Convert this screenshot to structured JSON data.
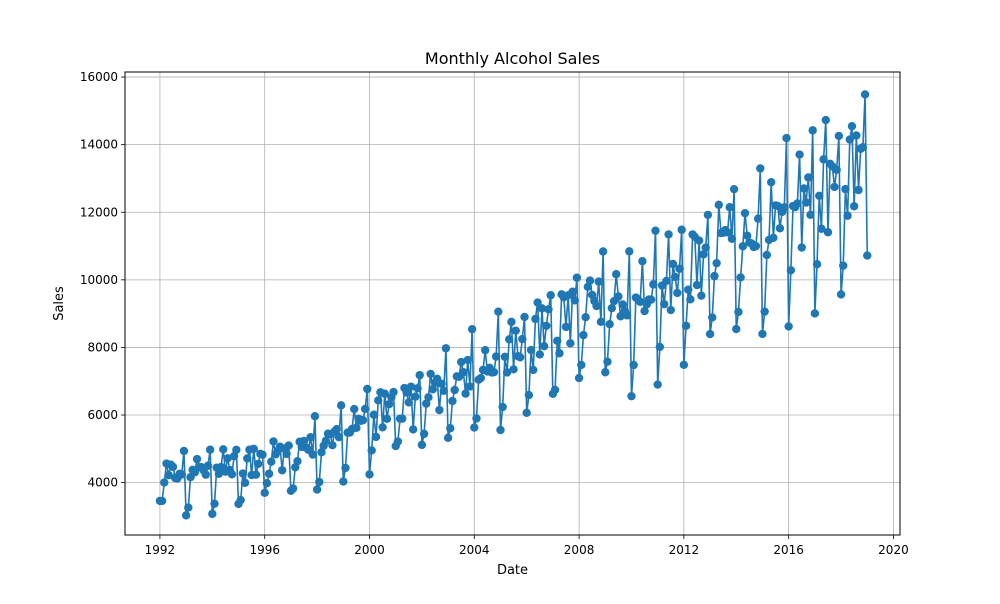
{
  "chart_data": {
    "type": "line",
    "title": "Monthly Alcohol Sales",
    "xlabel": "Date",
    "ylabel": "Sales",
    "xlim": [
      "1990-09-01",
      "2020-04-01"
    ],
    "ylim": [
      2450,
      16150
    ],
    "x_ticks": [
      "1992",
      "1996",
      "2000",
      "2004",
      "2008",
      "2012",
      "2016",
      "2020"
    ],
    "y_ticks": [
      "4000",
      "6000",
      "8000",
      "10000",
      "12000",
      "14000",
      "16000"
    ],
    "grid": true,
    "legend": "none",
    "series": [
      {
        "color": "#1f77b4",
        "marker": "circle",
        "x": [
          "1992-01",
          "1992-02",
          "1992-03",
          "1992-04",
          "1992-05",
          "1992-06",
          "1992-07",
          "1992-08",
          "1992-09",
          "1992-10",
          "1992-11",
          "1992-12",
          "1993-01",
          "1993-02",
          "1993-03",
          "1993-04",
          "1993-05",
          "1993-06",
          "1993-07",
          "1993-08",
          "1993-09",
          "1993-10",
          "1993-11",
          "1993-12",
          "1994-01",
          "1994-02",
          "1994-03",
          "1994-04",
          "1994-05",
          "1994-06",
          "1994-07",
          "1994-08",
          "1994-09",
          "1994-10",
          "1994-11",
          "1994-12",
          "1995-01",
          "1995-02",
          "1995-03",
          "1995-04",
          "1995-05",
          "1995-06",
          "1995-07",
          "1995-08",
          "1995-09",
          "1995-10",
          "1995-11",
          "1995-12",
          "1996-01",
          "1996-02",
          "1996-03",
          "1996-04",
          "1996-05",
          "1996-06",
          "1996-07",
          "1996-08",
          "1996-09",
          "1996-10",
          "1996-11",
          "1996-12",
          "1997-01",
          "1997-02",
          "1997-03",
          "1997-04",
          "1997-05",
          "1997-06",
          "1997-07",
          "1997-08",
          "1997-09",
          "1997-10",
          "1997-11",
          "1997-12",
          "1998-01",
          "1998-02",
          "1998-03",
          "1998-04",
          "1998-05",
          "1998-06",
          "1998-07",
          "1998-08",
          "1998-09",
          "1998-10",
          "1998-11",
          "1998-12",
          "1999-01",
          "1999-02",
          "1999-03",
          "1999-04",
          "1999-05",
          "1999-06",
          "1999-07",
          "1999-08",
          "1999-09",
          "1999-10",
          "1999-11",
          "1999-12",
          "2000-01",
          "2000-02",
          "2000-03",
          "2000-04",
          "2000-05",
          "2000-06",
          "2000-07",
          "2000-08",
          "2000-09",
          "2000-10",
          "2000-11",
          "2000-12",
          "2001-01",
          "2001-02",
          "2001-03",
          "2001-04",
          "2001-05",
          "2001-06",
          "2001-07",
          "2001-08",
          "2001-09",
          "2001-10",
          "2001-11",
          "2001-12",
          "2002-01",
          "2002-02",
          "2002-03",
          "2002-04",
          "2002-05",
          "2002-06",
          "2002-07",
          "2002-08",
          "2002-09",
          "2002-10",
          "2002-11",
          "2002-12",
          "2003-01",
          "2003-02",
          "2003-03",
          "2003-04",
          "2003-05",
          "2003-06",
          "2003-07",
          "2003-08",
          "2003-09",
          "2003-10",
          "2003-11",
          "2003-12",
          "2004-01",
          "2004-02",
          "2004-03",
          "2004-04",
          "2004-05",
          "2004-06",
          "2004-07",
          "2004-08",
          "2004-09",
          "2004-10",
          "2004-11",
          "2004-12",
          "2005-01",
          "2005-02",
          "2005-03",
          "2005-04",
          "2005-05",
          "2005-06",
          "2005-07",
          "2005-08",
          "2005-09",
          "2005-10",
          "2005-11",
          "2005-12",
          "2006-01",
          "2006-02",
          "2006-03",
          "2006-04",
          "2006-05",
          "2006-06",
          "2006-07",
          "2006-08",
          "2006-09",
          "2006-10",
          "2006-11",
          "2006-12",
          "2007-01",
          "2007-02",
          "2007-03",
          "2007-04",
          "2007-05",
          "2007-06",
          "2007-07",
          "2007-08",
          "2007-09",
          "2007-10",
          "2007-11",
          "2007-12",
          "2008-01",
          "2008-02",
          "2008-03",
          "2008-04",
          "2008-05",
          "2008-06",
          "2008-07",
          "2008-08",
          "2008-09",
          "2008-10",
          "2008-11",
          "2008-12",
          "2009-01",
          "2009-02",
          "2009-03",
          "2009-04",
          "2009-05",
          "2009-06",
          "2009-07",
          "2009-08",
          "2009-09",
          "2009-10",
          "2009-11",
          "2009-12",
          "2010-01",
          "2010-02",
          "2010-03",
          "2010-04",
          "2010-05",
          "2010-06",
          "2010-07",
          "2010-08",
          "2010-09",
          "2010-10",
          "2010-11",
          "2010-12",
          "2011-01",
          "2011-02",
          "2011-03",
          "2011-04",
          "2011-05",
          "2011-06",
          "2011-07",
          "2011-08",
          "2011-09",
          "2011-10",
          "2011-11",
          "2011-12",
          "2012-01",
          "2012-02",
          "2012-03",
          "2012-04",
          "2012-05",
          "2012-06",
          "2012-07",
          "2012-08",
          "2012-09",
          "2012-10",
          "2012-11",
          "2012-12",
          "2013-01",
          "2013-02",
          "2013-03",
          "2013-04",
          "2013-05",
          "2013-06",
          "2013-07",
          "2013-08",
          "2013-09",
          "2013-10",
          "2013-11",
          "2013-12",
          "2014-01",
          "2014-02",
          "2014-03",
          "2014-04",
          "2014-05",
          "2014-06",
          "2014-07",
          "2014-08",
          "2014-09",
          "2014-10",
          "2014-11",
          "2014-12",
          "2015-01",
          "2015-02",
          "2015-03",
          "2015-04",
          "2015-05",
          "2015-06",
          "2015-07",
          "2015-08",
          "2015-09",
          "2015-10",
          "2015-11",
          "2015-12",
          "2016-01",
          "2016-02",
          "2016-03",
          "2016-04",
          "2016-05",
          "2016-06",
          "2016-07",
          "2016-08",
          "2016-09",
          "2016-10",
          "2016-11",
          "2016-12",
          "2017-01",
          "2017-02",
          "2017-03",
          "2017-04",
          "2017-05",
          "2017-06",
          "2017-07",
          "2017-08",
          "2017-09",
          "2017-10",
          "2017-11",
          "2017-12",
          "2018-01",
          "2018-02",
          "2018-03",
          "2018-04",
          "2018-05",
          "2018-06",
          "2018-07",
          "2018-08",
          "2018-09",
          "2018-10",
          "2018-11",
          "2018-12",
          "2019-01"
        ],
        "y": [
          3459,
          3458,
          4002,
          4564,
          4221,
          4529,
          4466,
          4137,
          4126,
          4259,
          4240,
          4936,
          3031,
          3261,
          4160,
          4377,
          4307,
          4696,
          4458,
          4457,
          4364,
          4236,
          4500,
          4974,
          3075,
          3377,
          4443,
          4261,
          4460,
          4985,
          4324,
          4719,
          4374,
          4248,
          4784,
          4971,
          3370,
          3484,
          4269,
          3994,
          4715,
          4974,
          4223,
          5000,
          4235,
          4554,
          4851,
          4826,
          3699,
          3983,
          4262,
          4619,
          5219,
          4836,
          4941,
          5062,
          4365,
          5012,
          4850,
          5097,
          3758,
          3825,
          4454,
          4635,
          5210,
          5057,
          5231,
          5034,
          4970,
          5342,
          4831,
          5965,
          3796,
          4019,
          4898,
          5090,
          5237,
          5447,
          5435,
          5107,
          5515,
          5583,
          5346,
          6286,
          4032,
          4435,
          5479,
          5483,
          5587,
          6176,
          5621,
          5889,
          5828,
          5849,
          6180,
          6771,
          4243,
          4952,
          6008,
          5353,
          6435,
          6673,
          5636,
          6630,
          5887,
          6322,
          6520,
          6678,
          5082,
          5216,
          5893,
          5894,
          6799,
          6667,
          6374,
          6840,
          5575,
          6545,
          6789,
          7180,
          5117,
          5442,
          6337,
          6525,
          7216,
          6761,
          6958,
          7070,
          6148,
          6924,
          6716,
          7975,
          5326,
          5609,
          6414,
          6741,
          7144,
          7133,
          7568,
          7266,
          6634,
          7626,
          6843,
          8540,
          5629,
          5898,
          7045,
          7094,
          7333,
          7918,
          7289,
          7396,
          7259,
          7268,
          7731,
          9058,
          5557,
          6237,
          7723,
          7262,
          8241,
          8757,
          7352,
          8496,
          7741,
          7710,
          8247,
          8902,
          6066,
          6590,
          7923,
          7335,
          8843,
          9327,
          7792,
          9156,
          8037,
          8640,
          9128,
          9545,
          6627,
          6743,
          8195,
          7828,
          9570,
          9484,
          8608,
          9543,
          8123,
          9649,
          9390,
          10065,
          7093,
          7483,
          8365,
          8895,
          9794,
          9977,
          9553,
          9375,
          9225,
          9948,
          8758,
          10839,
          7266,
          7578,
          8688,
          9162,
          9369,
          10167,
          9507,
          8923,
          9272,
          9075,
          8949,
          10843,
          6558,
          7481,
          9475,
          9424,
          9351,
          10552,
          9077,
          9273,
          9420,
          9413,
          9866,
          11455,
          6901,
          8014,
          9832,
          9281,
          9967,
          11344,
          9106,
          10469,
          10085,
          9612,
          10328,
          11483,
          7486,
          8641,
          9709,
          9423,
          11342,
          11274,
          9845,
          11163,
          9532,
          10754,
          10953,
          11922,
          8395,
          8888,
          10110,
          10493,
          12218,
          11385,
          11391,
          11472,
          11405,
          12148,
          11216,
          12683,
          8544,
          9050,
          10072,
          10993,
          11973,
          11306,
          11103,
          11077,
          10970,
          10997,
          11810,
          13297,
          8399,
          9059,
          10736,
          11181,
          12889,
          11244,
          12201,
          12187,
          11526,
          12012,
          12146,
          14195,
          8621,
          10283,
          12184,
          12150,
          12261,
          13707,
          10956,
          12703,
          12286,
          13028,
          11925,
          14423,
          9006,
          10463,
          12487,
          11512,
          13565,
          14728,
          11409,
          13434,
          13358,
          12749,
          13257,
          14258,
          9569,
          10420,
          12685,
          11897,
          14151,
          14546,
          12178,
          14271,
          12658,
          13879,
          13925,
          15487,
          10718
        ]
      }
    ]
  }
}
